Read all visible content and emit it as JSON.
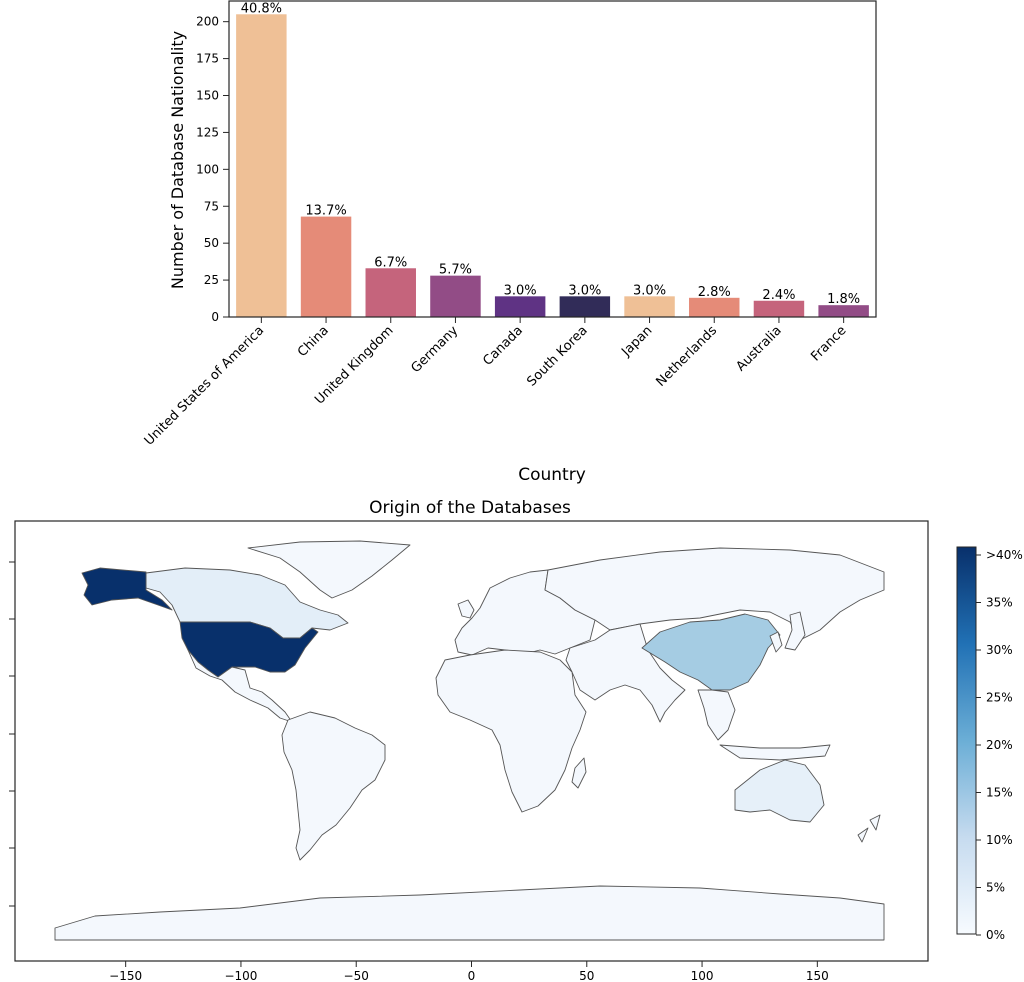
{
  "chart_data": [
    {
      "type": "bar",
      "title": "",
      "xlabel": "Country",
      "ylabel": "Number of Database Nationality",
      "ylim": [
        0,
        214
      ],
      "yticks": [
        0,
        25,
        50,
        75,
        100,
        125,
        150,
        175,
        200
      ],
      "categories": [
        "United States of America",
        "China",
        "United Kingdom",
        "Germany",
        "Canada",
        "South Korea",
        "Japan",
        "Netherlands",
        "Australia",
        "France"
      ],
      "values": [
        205,
        68,
        33,
        28,
        14,
        14,
        14,
        13,
        11,
        8
      ],
      "labels": [
        "40.8%",
        "13.7%",
        "6.7%",
        "5.7%",
        "3.0%",
        "3.0%",
        "3.0%",
        "2.8%",
        "2.4%",
        "1.8%"
      ],
      "colors": [
        "#efc096",
        "#e58b78",
        "#c5647c",
        "#924c86",
        "#5f3384",
        "#312c58",
        "#efc096",
        "#e58b78",
        "#c5647c",
        "#924c86"
      ],
      "grid": false
    },
    {
      "type": "heatmap",
      "title": "Origin of the Databases",
      "xticks": [
        "-150",
        "-100",
        "-50",
        "0",
        "50",
        "100",
        "150"
      ],
      "xlim": [
        -198,
        198
      ],
      "colorbar": {
        "ticks": [
          "0%",
          "5%",
          "10%",
          "15%",
          "20%",
          "25%",
          "30%",
          "35%",
          ">40%"
        ],
        "colors": [
          "#f7fbff",
          "#08306b"
        ]
      },
      "countries": [
        {
          "name": "United States of America",
          "value": 40.8,
          "color": "#08306b"
        },
        {
          "name": "China",
          "value": 13.7,
          "color": "#a5cce3"
        },
        {
          "name": "Canada",
          "value": 3.0,
          "color": "#e3eef8"
        },
        {
          "name": "Australia",
          "value": 2.4,
          "color": "#e6f0f9"
        },
        {
          "name": "other",
          "value": 0,
          "color": "#f4f8fd"
        }
      ]
    }
  ]
}
